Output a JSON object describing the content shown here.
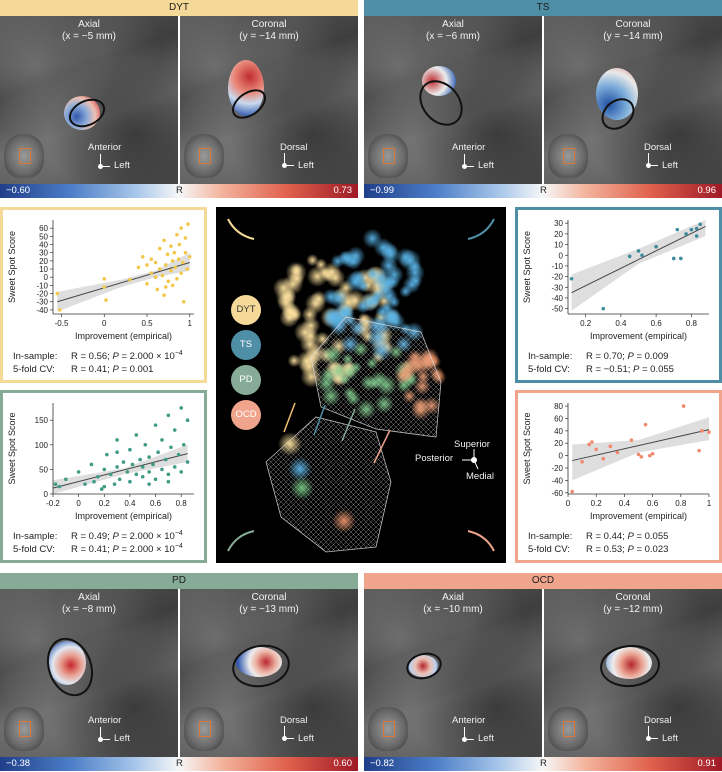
{
  "colors": {
    "dyt": "#f5d999",
    "ts": "#4f8fa6",
    "pd": "#86ac98",
    "ocd": "#f0a48c",
    "cmap_low": "#2a4f9e",
    "cmap_mid": "#f5f5f5",
    "cmap_high": "#b8232c"
  },
  "mri_panels": [
    {
      "key": "dyt",
      "header": "DYT",
      "axial_title": "Axial",
      "axial_sub": "(x = −5 mm)",
      "coronal_title": "Coronal",
      "coronal_sub": "(y = −14 mm)",
      "axial_dir1": "Anterior",
      "axial_dir2": "Left",
      "coronal_dir1": "Dorsal",
      "coronal_dir2": "Left",
      "cb_min": "−0.60",
      "cb_label": "R",
      "cb_max": "0.73"
    },
    {
      "key": "ts",
      "header": "TS",
      "axial_title": "Axial",
      "axial_sub": "(x = −6 mm)",
      "coronal_title": "Coronal",
      "coronal_sub": "(y = −14 mm)",
      "axial_dir1": "Anterior",
      "axial_dir2": "Left",
      "coronal_dir1": "Dorsal",
      "coronal_dir2": "Left",
      "cb_min": "−0.99",
      "cb_label": "R",
      "cb_max": "0.96"
    },
    {
      "key": "pd",
      "header": "PD",
      "axial_title": "Axial",
      "axial_sub": "(x = −8 mm)",
      "coronal_title": "Coronal",
      "coronal_sub": "(y = −13 mm)",
      "axial_dir1": "Anterior",
      "axial_dir2": "Left",
      "coronal_dir1": "Dorsal",
      "coronal_dir2": "Left",
      "cb_min": "−0.38",
      "cb_label": "R",
      "cb_max": "0.60"
    },
    {
      "key": "ocd",
      "header": "OCD",
      "axial_title": "Axial",
      "axial_sub": "(x = −10 mm)",
      "coronal_title": "Coronal",
      "coronal_sub": "(y = −12 mm)",
      "axial_dir1": "Anterior",
      "axial_dir2": "Left",
      "coronal_dir1": "Dorsal",
      "coronal_dir2": "Left",
      "cb_min": "−0.82",
      "cb_label": "R",
      "cb_max": "0.91"
    }
  ],
  "center": {
    "legend": [
      "DYT",
      "TS",
      "PD",
      "OCD"
    ],
    "orientation": [
      "Superior",
      "Posterior",
      "Medial"
    ]
  },
  "chart_data": [
    {
      "key": "dyt",
      "type": "scatter",
      "xlabel": "Improvement (empirical)",
      "ylabel": "Sweet Spot Score",
      "xlim": [
        -0.6,
        1.05
      ],
      "ylim": [
        -45,
        70
      ],
      "xticks": [
        -0.5,
        0,
        0.5,
        1
      ],
      "yticks": [
        -40,
        -30,
        -20,
        -10,
        0,
        10,
        20,
        30,
        40,
        50,
        60
      ],
      "fit": [
        [
          -0.55,
          -30
        ],
        [
          1.0,
          18
        ]
      ],
      "band": [
        [
          -0.55,
          -42,
          -18
        ],
        [
          0.2,
          -12,
          -3
        ],
        [
          0.6,
          0,
          8
        ],
        [
          1.0,
          8,
          30
        ]
      ],
      "points": [
        [
          -0.55,
          -20
        ],
        [
          -0.52,
          -40
        ],
        [
          0.0,
          -2
        ],
        [
          0.0,
          -12
        ],
        [
          0.02,
          -28
        ],
        [
          0.3,
          -3
        ],
        [
          0.4,
          12
        ],
        [
          0.45,
          25
        ],
        [
          0.5,
          -8
        ],
        [
          0.55,
          22
        ],
        [
          0.55,
          5
        ],
        [
          0.6,
          18
        ],
        [
          0.62,
          -15
        ],
        [
          0.65,
          10
        ],
        [
          0.65,
          35
        ],
        [
          0.68,
          2
        ],
        [
          0.7,
          -22
        ],
        [
          0.7,
          45
        ],
        [
          0.72,
          15
        ],
        [
          0.74,
          28
        ],
        [
          0.75,
          -5
        ],
        [
          0.78,
          8
        ],
        [
          0.78,
          38
        ],
        [
          0.8,
          20
        ],
        [
          0.8,
          -10
        ],
        [
          0.82,
          30
        ],
        [
          0.83,
          12
        ],
        [
          0.85,
          52
        ],
        [
          0.85,
          -2
        ],
        [
          0.87,
          22
        ],
        [
          0.88,
          40
        ],
        [
          0.9,
          5
        ],
        [
          0.9,
          60
        ],
        [
          0.92,
          18
        ],
        [
          0.93,
          -30
        ],
        [
          0.95,
          30
        ],
        [
          0.95,
          48
        ],
        [
          0.97,
          10
        ],
        [
          0.98,
          65
        ],
        [
          1.0,
          25
        ],
        [
          0.72,
          -12
        ],
        [
          0.6,
          0
        ],
        [
          0.5,
          15
        ]
      ],
      "stats": [
        {
          "label": "In-sample:",
          "r": "R = 0.56;",
          "p": "P",
          "pval": " = 2.000 × 10",
          "exp": "−4"
        },
        {
          "label": "5-fold CV:",
          "r": "R = 0.41;",
          "p": "P",
          "pval": " = 0.001",
          "exp": ""
        }
      ]
    },
    {
      "key": "ts",
      "type": "scatter",
      "xlabel": "Improvement (empirical)",
      "ylabel": "Sweet Spot Score",
      "xlim": [
        0.1,
        0.9
      ],
      "ylim": [
        -55,
        33
      ],
      "xticks": [
        0.2,
        0.4,
        0.6,
        0.8
      ],
      "yticks": [
        -50,
        -40,
        -30,
        -20,
        -10,
        0,
        10,
        20,
        30
      ],
      "fit": [
        [
          0.12,
          -35
        ],
        [
          0.88,
          27
        ]
      ],
      "band": [
        [
          0.12,
          -52,
          -18
        ],
        [
          0.5,
          -8,
          6
        ],
        [
          0.88,
          18,
          33
        ]
      ],
      "points": [
        [
          0.12,
          -22
        ],
        [
          0.3,
          -50
        ],
        [
          0.45,
          -1
        ],
        [
          0.5,
          4
        ],
        [
          0.52,
          0
        ],
        [
          0.6,
          8
        ],
        [
          0.7,
          -3
        ],
        [
          0.72,
          24
        ],
        [
          0.74,
          -3
        ],
        [
          0.77,
          20
        ],
        [
          0.8,
          24
        ],
        [
          0.83,
          25
        ],
        [
          0.85,
          29
        ],
        [
          0.83,
          18
        ]
      ],
      "stats": [
        {
          "label": "In-sample:",
          "r": "R = 0.70;",
          "p": "P",
          "pval": " = 0.009",
          "exp": ""
        },
        {
          "label": "5-fold CV:",
          "r": "R = −0.51;",
          "p": "P",
          "pval": " = 0.055",
          "exp": ""
        }
      ]
    },
    {
      "key": "pd",
      "type": "scatter",
      "xlabel": "Improvement (empirical)",
      "ylabel": "Sweet Spot Score",
      "xlim": [
        -0.2,
        0.9
      ],
      "ylim": [
        0,
        185
      ],
      "xticks": [
        -0.2,
        0,
        0.2,
        0.4,
        0.6,
        0.8
      ],
      "yticks": [
        0,
        50,
        100,
        150
      ],
      "fit": [
        [
          -0.2,
          12
        ],
        [
          0.85,
          82
        ]
      ],
      "band": [
        [
          -0.2,
          0,
          28
        ],
        [
          0.35,
          40,
          52
        ],
        [
          0.85,
          65,
          100
        ]
      ],
      "points": [
        [
          -0.18,
          20
        ],
        [
          -0.15,
          15
        ],
        [
          -0.1,
          30
        ],
        [
          0.0,
          45
        ],
        [
          0.05,
          20
        ],
        [
          0.1,
          60
        ],
        [
          0.12,
          25
        ],
        [
          0.15,
          35
        ],
        [
          0.18,
          10
        ],
        [
          0.2,
          50
        ],
        [
          0.22,
          80
        ],
        [
          0.25,
          40
        ],
        [
          0.28,
          20
        ],
        [
          0.3,
          110
        ],
        [
          0.3,
          55
        ],
        [
          0.32,
          30
        ],
        [
          0.35,
          65
        ],
        [
          0.38,
          45
        ],
        [
          0.4,
          25
        ],
        [
          0.4,
          90
        ],
        [
          0.42,
          60
        ],
        [
          0.45,
          40
        ],
        [
          0.45,
          120
        ],
        [
          0.48,
          70
        ],
        [
          0.5,
          35
        ],
        [
          0.5,
          55
        ],
        [
          0.52,
          100
        ],
        [
          0.55,
          45
        ],
        [
          0.55,
          75
        ],
        [
          0.58,
          60
        ],
        [
          0.6,
          30
        ],
        [
          0.6,
          140
        ],
        [
          0.62,
          85
        ],
        [
          0.65,
          50
        ],
        [
          0.65,
          110
        ],
        [
          0.68,
          70
        ],
        [
          0.7,
          40
        ],
        [
          0.7,
          160
        ],
        [
          0.72,
          95
        ],
        [
          0.75,
          55
        ],
        [
          0.75,
          130
        ],
        [
          0.78,
          80
        ],
        [
          0.8,
          45
        ],
        [
          0.8,
          175
        ],
        [
          0.82,
          100
        ],
        [
          0.85,
          65
        ],
        [
          0.85,
          150
        ],
        [
          0.3,
          85
        ],
        [
          0.2,
          15
        ],
        [
          0.55,
          20
        ],
        [
          0.7,
          25
        ]
      ],
      "stats": [
        {
          "label": "In-sample:",
          "r": "R = 0.49;",
          "p": "P",
          "pval": " = 2.000 × 10",
          "exp": "−4"
        },
        {
          "label": "5-fold CV:",
          "r": "R = 0.41;",
          "p": "P",
          "pval": " = 2.000 × 10",
          "exp": "−4"
        }
      ]
    },
    {
      "key": "ocd",
      "type": "scatter",
      "xlabel": "Improvement (empirical)",
      "ylabel": "Sweet Spot Score",
      "xlim": [
        0,
        1
      ],
      "ylim": [
        -62,
        85
      ],
      "xticks": [
        0,
        0.2,
        0.4,
        0.6,
        0.8,
        1
      ],
      "yticks": [
        -60,
        -40,
        -20,
        0,
        20,
        40,
        60,
        80
      ],
      "fit": [
        [
          0.03,
          -8
        ],
        [
          1.0,
          42
        ]
      ],
      "band": [
        [
          0.03,
          -40,
          18
        ],
        [
          0.5,
          5,
          25
        ],
        [
          1.0,
          25,
          62
        ]
      ],
      "points": [
        [
          0.03,
          -58
        ],
        [
          0.1,
          -10
        ],
        [
          0.15,
          18
        ],
        [
          0.17,
          22
        ],
        [
          0.2,
          10
        ],
        [
          0.25,
          -5
        ],
        [
          0.3,
          15
        ],
        [
          0.35,
          5
        ],
        [
          0.45,
          25
        ],
        [
          0.5,
          2
        ],
        [
          0.52,
          -2
        ],
        [
          0.55,
          50
        ],
        [
          0.58,
          0
        ],
        [
          0.6,
          3
        ],
        [
          0.82,
          80
        ],
        [
          0.93,
          8
        ],
        [
          0.95,
          40
        ],
        [
          1.0,
          38
        ]
      ],
      "stats": [
        {
          "label": "In-sample:",
          "r": "R = 0.44;",
          "p": "P",
          "pval": " = 0.055",
          "exp": ""
        },
        {
          "label": "5-fold CV:",
          "r": "R = 0.53;",
          "p": "P",
          "pval": " = 0.023",
          "exp": ""
        }
      ]
    }
  ]
}
